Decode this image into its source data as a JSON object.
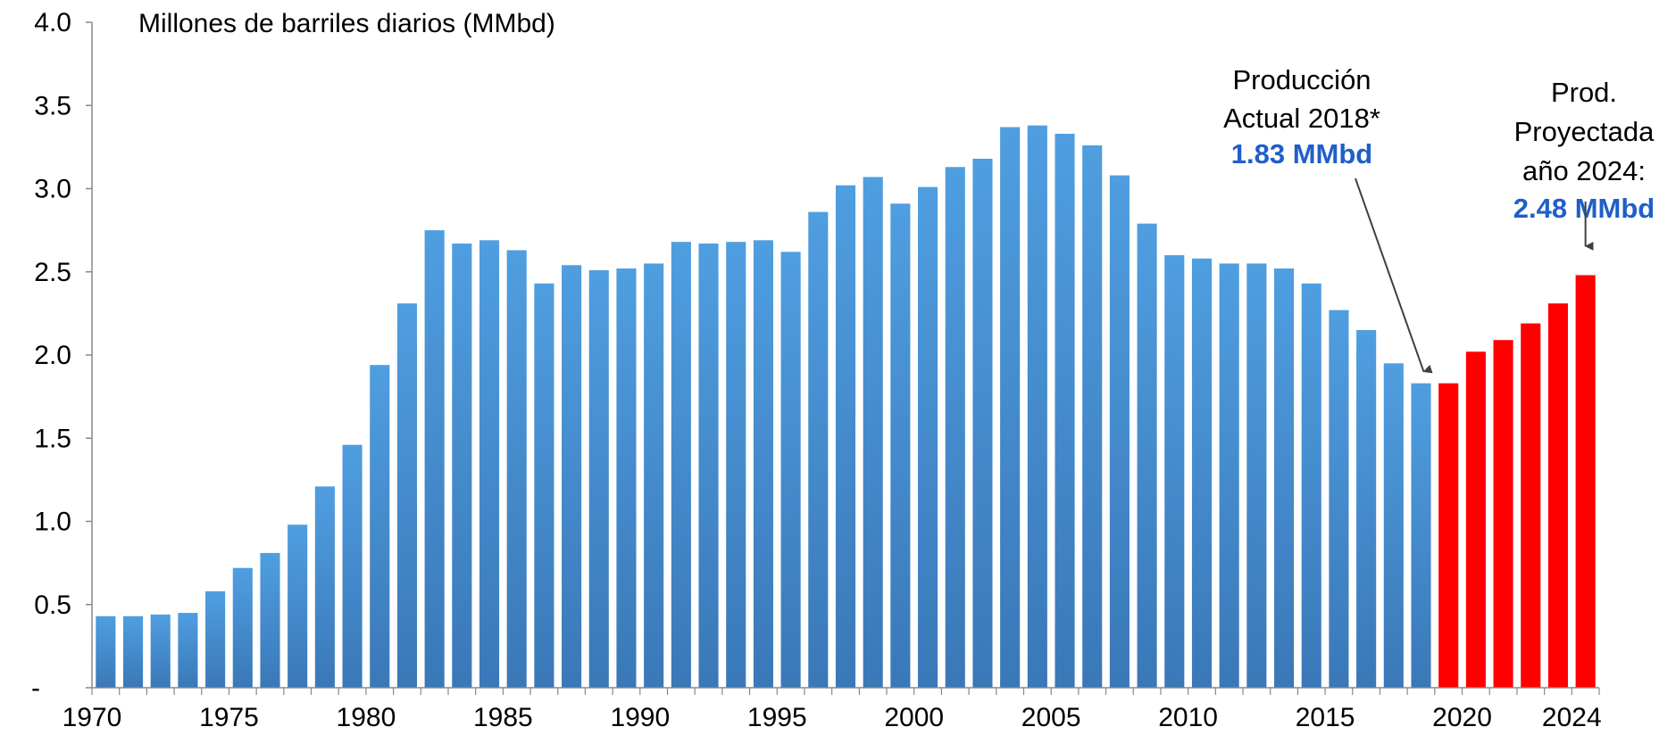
{
  "chart_data": {
    "type": "bar",
    "ylabel": "Millones de barriles diarios (MMbd)",
    "ylim": [
      0,
      4.0
    ],
    "y_ticks": [
      "-",
      "0.5",
      "1.0",
      "1.5",
      "2.0",
      "2.5",
      "3.0",
      "3.5",
      "4.0"
    ],
    "x_ticks": [
      "1970",
      "1975",
      "1980",
      "1985",
      "1990",
      "1995",
      "2000",
      "2005",
      "2010",
      "2015",
      "2020",
      "2024"
    ],
    "grid": false,
    "categories": [
      1970,
      1971,
      1972,
      1973,
      1974,
      1975,
      1976,
      1977,
      1978,
      1979,
      1980,
      1981,
      1982,
      1983,
      1984,
      1985,
      1986,
      1987,
      1988,
      1989,
      1990,
      1991,
      1992,
      1993,
      1994,
      1995,
      1996,
      1997,
      1998,
      1999,
      2000,
      2001,
      2002,
      2003,
      2004,
      2005,
      2006,
      2007,
      2008,
      2009,
      2010,
      2011,
      2012,
      2013,
      2014,
      2015,
      2016,
      2017,
      2018,
      2019,
      2020,
      2021,
      2022,
      2023,
      2024
    ],
    "series": [
      {
        "kind": "actual",
        "color": "#4a90d0",
        "x": [
          1970,
          1971,
          1972,
          1973,
          1974,
          1975,
          1976,
          1977,
          1978,
          1979,
          1980,
          1981,
          1982,
          1983,
          1984,
          1985,
          1986,
          1987,
          1988,
          1989,
          1990,
          1991,
          1992,
          1993,
          1994,
          1995,
          1996,
          1997,
          1998,
          1999,
          2000,
          2001,
          2002,
          2003,
          2004,
          2005,
          2006,
          2007,
          2008,
          2009,
          2010,
          2011,
          2012,
          2013,
          2014,
          2015,
          2016,
          2017,
          2018
        ],
        "values": [
          0.43,
          0.43,
          0.44,
          0.45,
          0.58,
          0.72,
          0.81,
          0.98,
          1.21,
          1.46,
          1.94,
          2.31,
          2.75,
          2.67,
          2.69,
          2.63,
          2.43,
          2.54,
          2.51,
          2.52,
          2.55,
          2.68,
          2.67,
          2.68,
          2.69,
          2.62,
          2.86,
          3.02,
          3.07,
          2.91,
          3.01,
          3.13,
          3.18,
          3.37,
          3.38,
          3.33,
          3.26,
          3.08,
          2.79,
          2.6,
          2.58,
          2.55,
          2.55,
          2.52,
          2.43,
          2.27,
          2.15,
          1.95,
          1.83
        ]
      },
      {
        "kind": "projected",
        "color": "#ff0000",
        "x": [
          2019,
          2020,
          2021,
          2022,
          2023,
          2024
        ],
        "values": [
          1.83,
          2.02,
          2.09,
          2.19,
          2.31,
          2.48
        ]
      }
    ],
    "annotations": [
      {
        "x": 2018,
        "lines": [
          "Producción",
          "Actual 2018*"
        ],
        "value": "1.83 MMbd",
        "value_color": "#1f5fc8"
      },
      {
        "x": 2024,
        "lines": [
          "Prod.",
          "Proyectada",
          "año 2024:"
        ],
        "value": "2.48 MMbd",
        "value_color": "#1f5fc8"
      }
    ]
  }
}
